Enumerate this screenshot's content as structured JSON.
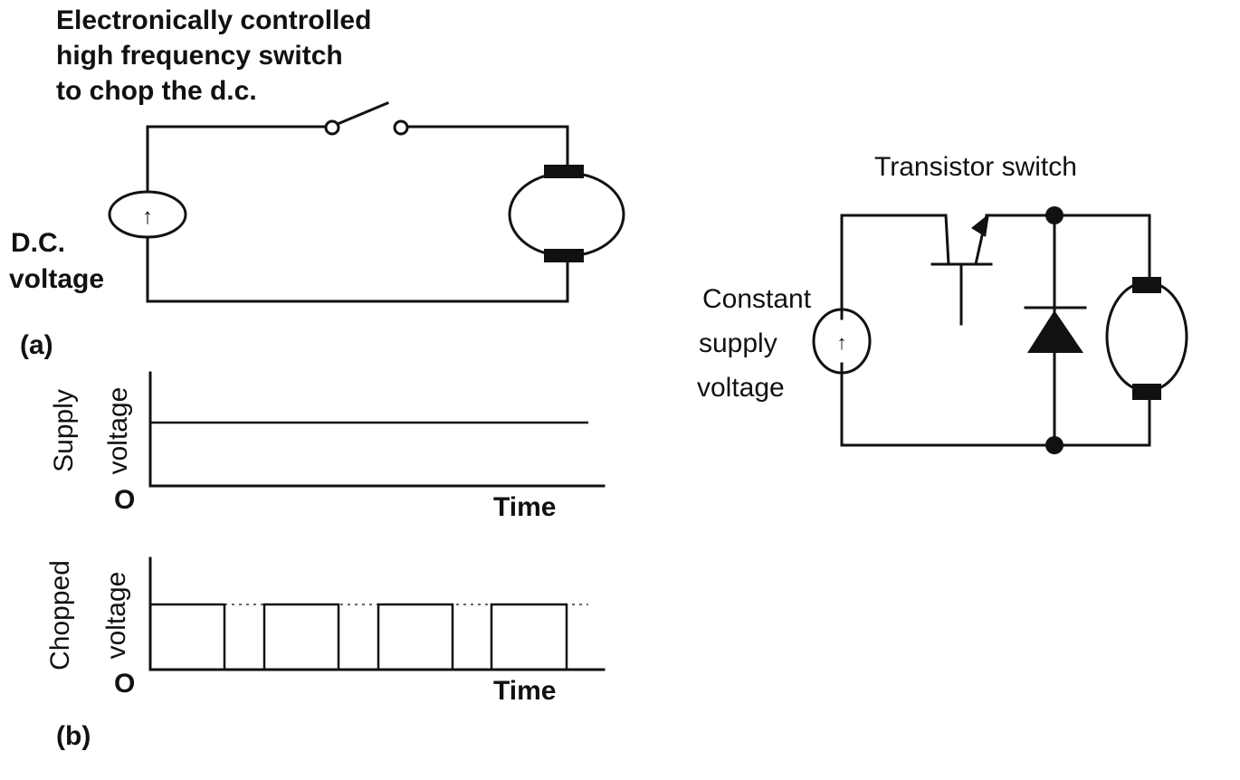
{
  "panel_a": {
    "switch_caption": [
      "Electronically controlled",
      "high frequency switch",
      "to chop the d.c."
    ],
    "source_label": [
      "D.C.",
      "voltage"
    ],
    "source_symbol": "↑",
    "panel_label": "(a)"
  },
  "panel_b": {
    "supply_plot": {
      "ylabel": [
        "Supply",
        "voltage"
      ],
      "origin": "O",
      "xlabel": "Time"
    },
    "chopped_plot": {
      "ylabel": [
        "Chopped",
        "voltage"
      ],
      "origin": "O",
      "xlabel": "Time"
    },
    "panel_label": "(b)"
  },
  "transistor_circuit": {
    "title": "Transistor switch",
    "source_label": [
      "Constant",
      "supply",
      "voltage"
    ],
    "source_symbol": "↑"
  }
}
